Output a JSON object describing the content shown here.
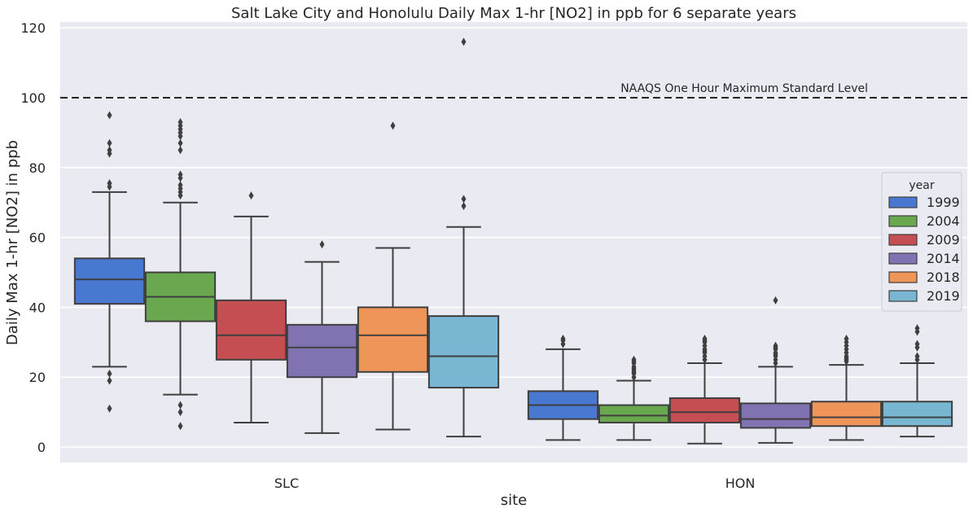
{
  "chart_data": {
    "type": "box",
    "title": "Salt Lake City and Honolulu Daily Max 1-hr [NO2] in ppb for 6 separate years",
    "xlabel": "site",
    "ylabel": "Daily Max 1-hr [NO2] in ppb",
    "ylim": [
      -4.5,
      122
    ],
    "yticks": [
      0,
      20,
      40,
      60,
      80,
      100,
      120
    ],
    "categories": [
      "SLC",
      "HON"
    ],
    "grid": true,
    "legend": {
      "title": "year",
      "position": "right"
    },
    "reference_line": {
      "y": 100,
      "style": "dashed",
      "label": "NAAQS One Hour Maximum Standard Level"
    },
    "series": [
      {
        "name": "1999",
        "color": "#4878cf",
        "boxes": [
          {
            "category": "SLC",
            "whislo": 23,
            "q1": 41,
            "med": 48,
            "q3": 54,
            "whishi": 73,
            "fliers": [
              11,
              19,
              21,
              74.5,
              75.5,
              84,
              85,
              87,
              95
            ]
          },
          {
            "category": "HON",
            "whislo": 2,
            "q1": 8,
            "med": 12,
            "q3": 16,
            "whishi": 28,
            "fliers": [
              29.5,
              30.5,
              31
            ]
          }
        ]
      },
      {
        "name": "2004",
        "color": "#6aa84f",
        "boxes": [
          {
            "category": "SLC",
            "whislo": 15,
            "q1": 36,
            "med": 43,
            "q3": 50,
            "whishi": 70,
            "fliers": [
              6,
              10,
              12,
              72,
              73,
              74,
              75,
              77,
              78,
              85,
              87,
              89,
              90,
              91,
              92,
              93
            ]
          },
          {
            "category": "HON",
            "whislo": 2,
            "q1": 7,
            "med": 9,
            "q3": 12,
            "whishi": 19,
            "fliers": [
              20,
              21,
              21.5,
              22,
              22.5,
              23,
              24,
              24.5,
              25
            ]
          }
        ]
      },
      {
        "name": "2009",
        "color": "#c44e52",
        "boxes": [
          {
            "category": "SLC",
            "whislo": 7,
            "q1": 25,
            "med": 32,
            "q3": 42,
            "whishi": 66,
            "fliers": [
              72
            ]
          },
          {
            "category": "HON",
            "whislo": 1,
            "q1": 7,
            "med": 10,
            "q3": 14,
            "whishi": 24,
            "fliers": [
              25,
              26,
              27,
              27.5,
              28,
              29,
              30,
              30.5,
              31
            ]
          }
        ]
      },
      {
        "name": "2014",
        "color": "#8172b2",
        "boxes": [
          {
            "category": "SLC",
            "whislo": 4,
            "q1": 20,
            "med": 28.5,
            "q3": 35,
            "whishi": 53,
            "fliers": [
              58
            ]
          },
          {
            "category": "HON",
            "whislo": 1.2,
            "q1": 5.5,
            "med": 8,
            "q3": 12.5,
            "whishi": 23,
            "fliers": [
              24,
              25,
              26,
              26.5,
              27,
              28,
              28.5,
              29,
              42
            ]
          }
        ]
      },
      {
        "name": "2018",
        "color": "#f0955a",
        "boxes": [
          {
            "category": "SLC",
            "whislo": 5,
            "q1": 21.5,
            "med": 32,
            "q3": 40,
            "whishi": 57,
            "fliers": [
              92
            ]
          },
          {
            "category": "HON",
            "whislo": 2,
            "q1": 6,
            "med": 8.5,
            "q3": 13,
            "whishi": 23.5,
            "fliers": [
              24.5,
              25,
              25.5,
              26,
              27,
              28,
              29,
              30,
              31
            ]
          }
        ]
      },
      {
        "name": "2019",
        "color": "#79b6d2",
        "boxes": [
          {
            "category": "SLC",
            "whislo": 3,
            "q1": 17,
            "med": 26,
            "q3": 37.5,
            "whishi": 63,
            "fliers": [
              69,
              71,
              116
            ]
          },
          {
            "category": "HON",
            "whislo": 3,
            "q1": 6,
            "med": 8.5,
            "q3": 13,
            "whishi": 24,
            "fliers": [
              25,
              26,
              28.5,
              29.5,
              33,
              34
            ]
          }
        ]
      }
    ]
  }
}
